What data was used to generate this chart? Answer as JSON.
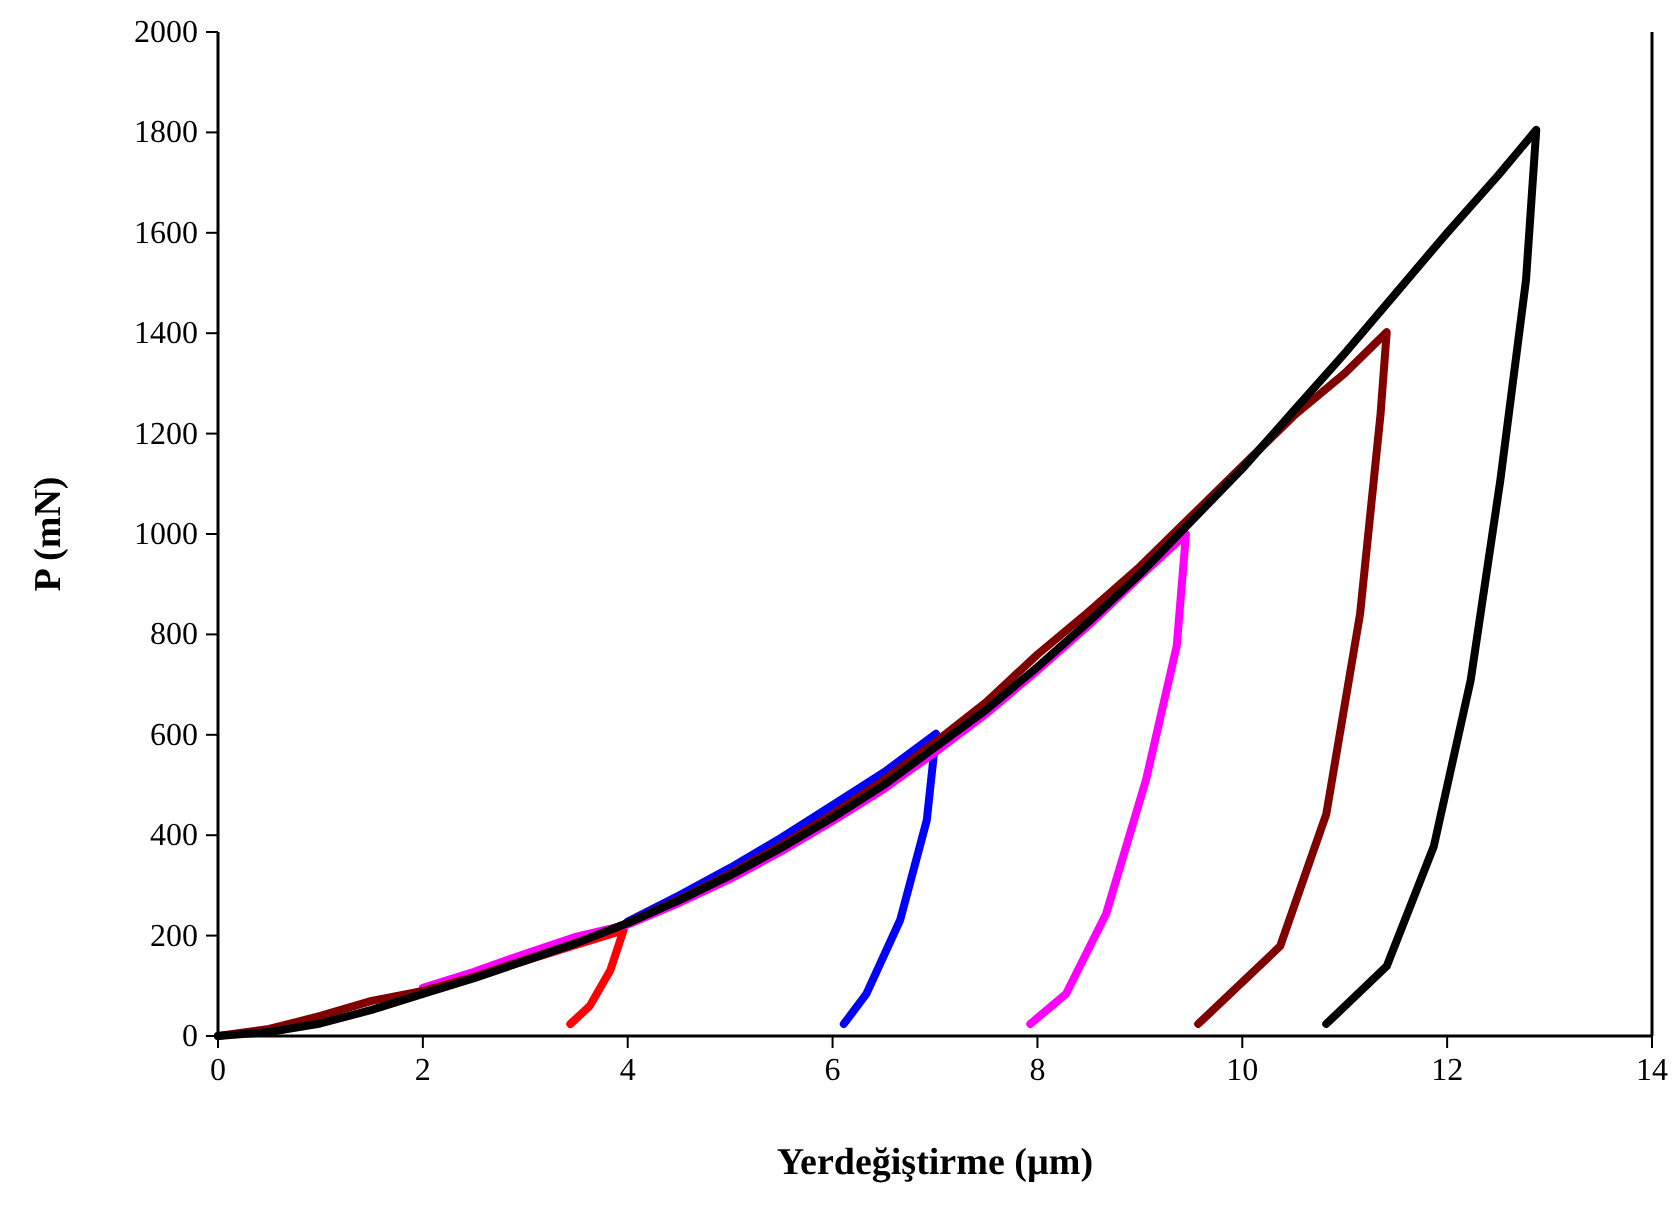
{
  "chart_data": {
    "type": "line",
    "xlabel": "Yerdeğiştirme (µm)",
    "ylabel": "P (mN)",
    "xlim": [
      0,
      14
    ],
    "xticks": [
      0,
      2,
      4,
      6,
      8,
      10,
      12,
      14
    ],
    "ylim": [
      0,
      2000
    ],
    "yticks": [
      0,
      200,
      400,
      600,
      800,
      1000,
      1200,
      1400,
      1600,
      1800,
      2000
    ],
    "grid": false,
    "marker": "none",
    "line_style": "solid",
    "series": [
      {
        "color": "#ff0000",
        "x": [
          2.5,
          3,
          3.5,
          3.96,
          3.83,
          3.63,
          3.44
        ],
        "values": [
          118,
          150,
          182,
          211,
          131,
          60,
          24
        ]
      },
      {
        "color": "#0000ff",
        "x": [
          4,
          4.5,
          5,
          5.5,
          6,
          6.5,
          7.01,
          6.92,
          6.66,
          6.33,
          6.11
        ],
        "values": [
          228,
          280,
          335,
          395,
          460,
          525,
          602,
          430,
          231,
          84,
          24
        ]
      },
      {
        "color": "#ff00ff",
        "x": [
          2,
          2.5,
          3,
          3.5,
          4,
          4.5,
          5,
          5.5,
          6,
          6.5,
          7,
          7.5,
          8,
          8.5,
          9,
          9.45,
          9.36,
          9.06,
          8.67,
          8.28,
          7.93
        ],
        "values": [
          96,
          128,
          164,
          198,
          222,
          265,
          313,
          368,
          428,
          492,
          565,
          642,
          728,
          818,
          915,
          1000,
          777,
          510,
          243,
          84,
          24
        ]
      },
      {
        "color": "#800000",
        "x": [
          0,
          0.5,
          1,
          1.5,
          2,
          2.5,
          3,
          3.5,
          4,
          4.5,
          5,
          5.5,
          6,
          6.5,
          7,
          7.5,
          8,
          8.5,
          9,
          9.5,
          10,
          10.5,
          11,
          11.41,
          11.35,
          11.15,
          10.82,
          10.37,
          9.57
        ],
        "values": [
          0,
          14,
          40,
          70,
          90,
          118,
          152,
          186,
          225,
          272,
          323,
          380,
          442,
          510,
          585,
          665,
          760,
          845,
          935,
          1035,
          1135,
          1235,
          1320,
          1402,
          1239,
          841,
          442,
          179,
          24
        ]
      },
      {
        "color": "#000000",
        "x": [
          0,
          0.5,
          1,
          1.5,
          2,
          2.5,
          3,
          3.5,
          4,
          4.5,
          5,
          5.5,
          6,
          6.5,
          7,
          7.5,
          8,
          8.5,
          9,
          9.5,
          10,
          10.5,
          11,
          11.5,
          12,
          12.5,
          12.87,
          12.77,
          12.52,
          12.23,
          11.87,
          11.41,
          10.82
        ],
        "values": [
          0,
          8,
          25,
          52,
          84,
          115,
          150,
          185,
          225,
          270,
          320,
          375,
          435,
          500,
          575,
          650,
          735,
          825,
          920,
          1025,
          1130,
          1245,
          1360,
          1480,
          1600,
          1715,
          1805,
          1506,
          1108,
          709,
          378,
          139,
          24
        ]
      }
    ]
  }
}
